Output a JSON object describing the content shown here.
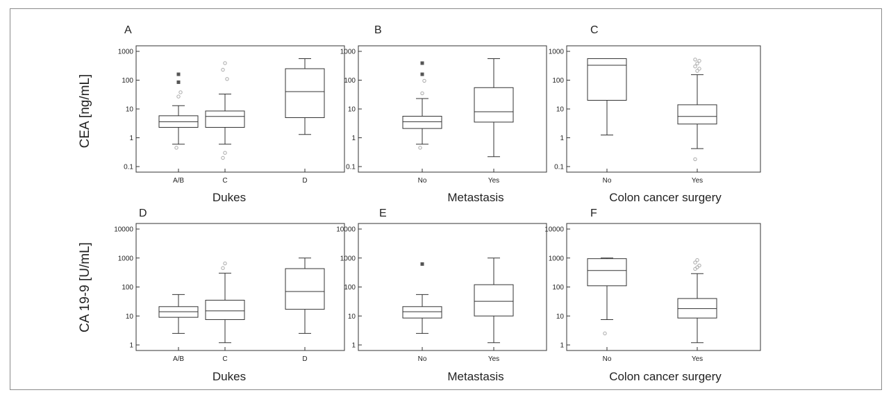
{
  "chart_data": [
    {
      "type": "box",
      "panel": "A",
      "ylabel": "CEA [ng/mL]",
      "xlabel": "Dukes",
      "scale": "log",
      "ylim": [
        0.1,
        1000
      ],
      "yticks": [
        "0.1",
        "1",
        "10",
        "100",
        "1000"
      ],
      "ytick_values": [
        0.1,
        1,
        10,
        100,
        1000
      ],
      "categories": [
        "A/B",
        "C",
        "D"
      ],
      "boxes": [
        {
          "whisker_low": 0.6,
          "q1": 2.3,
          "median": 3.6,
          "q3": 5.8,
          "whisker_high": 13,
          "outliers": [
            0.45,
            27,
            38
          ],
          "far_outliers": [
            85,
            160
          ]
        },
        {
          "whisker_low": 0.6,
          "q1": 2.3,
          "median": 5.5,
          "q3": 8.5,
          "whisker_high": 33,
          "outliers": [
            0.2,
            0.3,
            110,
            230,
            390
          ],
          "far_outliers": []
        },
        {
          "whisker_low": 1.3,
          "q1": 5,
          "median": 40,
          "q3": 250,
          "whisker_high": 560,
          "outliers": [],
          "far_outliers": []
        }
      ]
    },
    {
      "type": "box",
      "panel": "B",
      "ylabel": "",
      "xlabel": "Metastasis",
      "scale": "log",
      "ylim": [
        0.1,
        1000
      ],
      "yticks": [
        "0.1",
        "1",
        "10",
        "100",
        "1000"
      ],
      "ytick_values": [
        0.1,
        1,
        10,
        100,
        1000
      ],
      "categories": [
        "No",
        "Yes"
      ],
      "boxes": [
        {
          "whisker_low": 0.6,
          "q1": 2.1,
          "median": 3.6,
          "q3": 5.6,
          "whisker_high": 23,
          "outliers": [
            0.45,
            35,
            95
          ],
          "far_outliers": [
            160,
            390
          ]
        },
        {
          "whisker_low": 0.22,
          "q1": 3.5,
          "median": 8,
          "q3": 55,
          "whisker_high": 560,
          "outliers": [],
          "far_outliers": []
        }
      ]
    },
    {
      "type": "box",
      "panel": "C",
      "ylabel": "",
      "xlabel": "Colon cancer surgery",
      "scale": "log",
      "ylim": [
        0.1,
        1000
      ],
      "yticks": [
        "0.1",
        "1",
        "10",
        "100",
        "1000"
      ],
      "ytick_values": [
        0.1,
        1,
        10,
        100,
        1000
      ],
      "categories": [
        "No",
        "Yes"
      ],
      "boxes": [
        {
          "whisker_low": 1.25,
          "q1": 20,
          "median": 330,
          "q3": 560,
          "whisker_high": 560,
          "outliers": [],
          "far_outliers": []
        },
        {
          "whisker_low": 0.42,
          "q1": 3,
          "median": 5.5,
          "q3": 14,
          "whisker_high": 155,
          "outliers": [
            0.18,
            210,
            250,
            300,
            380,
            470,
            520
          ],
          "far_outliers": []
        }
      ]
    },
    {
      "type": "box",
      "panel": "D",
      "ylabel": "CA 19-9 [U/mL]",
      "xlabel": "Dukes",
      "scale": "log",
      "ylim": [
        1,
        10000
      ],
      "yticks": [
        "1",
        "10",
        "100",
        "1000",
        "10000"
      ],
      "ytick_values": [
        1,
        10,
        100,
        1000,
        10000
      ],
      "categories": [
        "A/B",
        "C",
        "D"
      ],
      "boxes": [
        {
          "whisker_low": 2.5,
          "q1": 9,
          "median": 14,
          "q3": 21,
          "whisker_high": 55,
          "outliers": [],
          "far_outliers": []
        },
        {
          "whisker_low": 1.2,
          "q1": 7.5,
          "median": 15,
          "q3": 35,
          "whisker_high": 300,
          "outliers": [
            450,
            650
          ],
          "far_outliers": []
        },
        {
          "whisker_low": 2.5,
          "q1": 17,
          "median": 70,
          "q3": 430,
          "whisker_high": 1000,
          "outliers": [],
          "far_outliers": []
        }
      ]
    },
    {
      "type": "box",
      "panel": "E",
      "ylabel": "",
      "xlabel": "Metastasis",
      "scale": "log",
      "ylim": [
        1,
        10000
      ],
      "yticks": [
        "1",
        "10",
        "100",
        "1000",
        "10000"
      ],
      "ytick_values": [
        1,
        10,
        100,
        1000,
        10000
      ],
      "categories": [
        "No",
        "Yes"
      ],
      "boxes": [
        {
          "whisker_low": 2.5,
          "q1": 8.5,
          "median": 14,
          "q3": 21,
          "whisker_high": 55,
          "outliers": [],
          "far_outliers": [
            620
          ]
        },
        {
          "whisker_low": 1.2,
          "q1": 10,
          "median": 32,
          "q3": 120,
          "whisker_high": 1000,
          "outliers": [],
          "far_outliers": []
        }
      ]
    },
    {
      "type": "box",
      "panel": "F",
      "ylabel": "",
      "xlabel": "Colon cancer surgery",
      "scale": "log",
      "ylim": [
        1,
        10000
      ],
      "yticks": [
        "1",
        "10",
        "100",
        "1000",
        "10000"
      ],
      "ytick_values": [
        1,
        10,
        100,
        1000,
        10000
      ],
      "categories": [
        "No",
        "Yes"
      ],
      "boxes": [
        {
          "whisker_low": 7.5,
          "q1": 110,
          "median": 370,
          "q3": 950,
          "whisker_high": 1000,
          "outliers": [
            2.5
          ],
          "far_outliers": []
        },
        {
          "whisker_low": 1.2,
          "q1": 8.5,
          "median": 18,
          "q3": 40,
          "whisker_high": 290,
          "outliers": [
            420,
            480,
            550,
            700,
            850
          ],
          "far_outliers": []
        }
      ]
    }
  ]
}
